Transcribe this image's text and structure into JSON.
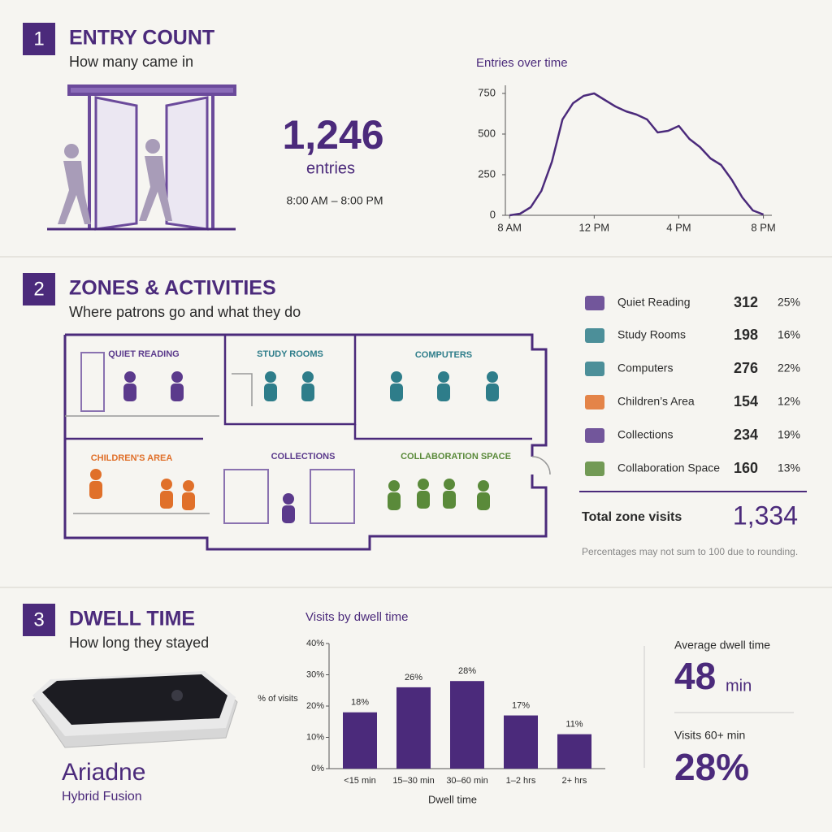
{
  "sections": [
    {
      "number": "1",
      "title": "ENTRY COUNT",
      "subtitle": "How many came in"
    },
    {
      "number": "2",
      "title": "ZONES & ACTIVITIES",
      "subtitle": "Where patrons go and what they do"
    },
    {
      "number": "3",
      "title": "DWELL TIME",
      "subtitle": "How long they stayed"
    }
  ],
  "entry_count": {
    "value": "1,246",
    "unit": "entries",
    "range": "8:00 AM – 8:00 PM"
  },
  "zones": {
    "labels": [
      "QUIET READING",
      "STUDY ROOMS",
      "COMPUTERS",
      "CHILDREN'S AREA",
      "COLLECTIONS",
      "COLLABORATION SPACE"
    ],
    "rows": [
      {
        "name": "Quiet Reading",
        "count": 312,
        "percent": "25%"
      },
      {
        "name": "Study Rooms",
        "count": 198,
        "percent": "16%"
      },
      {
        "name": "Computers",
        "count": 276,
        "percent": "22%"
      },
      {
        "name": "Children’s Area",
        "count": 154,
        "percent": "12%"
      },
      {
        "name": "Collections",
        "count": 234,
        "percent": "19%"
      },
      {
        "name": "Collaboration Space",
        "count": 160,
        "percent": "13%"
      }
    ],
    "total_label": "Total zone visits",
    "total": "1,334",
    "note": "Percentages may not sum to 100 due to rounding."
  },
  "dwell": {
    "average_label": "Average dwell time",
    "average": "48",
    "average_unit": "min",
    "long_label": "Visits 60+ min",
    "long_value": "28%"
  },
  "device": {
    "name": "Ariadne",
    "subtitle": "Hybrid Fusion"
  },
  "chart_data": [
    {
      "type": "line",
      "title": "Entries over time",
      "color": "#4b2a7b",
      "x": [
        8,
        8.5,
        9,
        9.5,
        10,
        10.5,
        11,
        11.5,
        12,
        12.5,
        13,
        13.5,
        14,
        14.5,
        15,
        15.5,
        16,
        16.5,
        17,
        17.5,
        18,
        18.5,
        19,
        19.5,
        20
      ],
      "values": [
        0,
        10,
        50,
        150,
        330,
        590,
        690,
        735,
        750,
        710,
        670,
        640,
        620,
        590,
        510,
        520,
        550,
        470,
        420,
        350,
        310,
        220,
        110,
        30,
        5
      ],
      "xlim": [
        7.8,
        20.4
      ],
      "ylim": [
        0,
        800
      ],
      "xticks": [
        {
          "value": 8,
          "label": "8 AM"
        },
        {
          "value": 12,
          "label": "12 PM"
        },
        {
          "value": 16,
          "label": "4 PM"
        },
        {
          "value": 20,
          "label": "8 PM"
        }
      ],
      "yticks": [
        0,
        250,
        500,
        750
      ]
    },
    {
      "type": "bar",
      "title": "Visits by dwell time",
      "color": "#4b2a7b",
      "y_label": "% of visits",
      "x_label": "Dwell time",
      "categories": [
        "<15 min",
        "15–30 min",
        "30–60 min",
        "1–2 hrs",
        "2+ hrs"
      ],
      "values": [
        18,
        26,
        28,
        17,
        11
      ],
      "value_labels": [
        "18%",
        "26%",
        "28%",
        "17%",
        "11%"
      ],
      "ylim": [
        0,
        40
      ],
      "yticks": [
        {
          "value": 0,
          "label": "0%"
        },
        {
          "value": 10,
          "label": "10%"
        },
        {
          "value": 20,
          "label": "20%"
        },
        {
          "value": 30,
          "label": "30%"
        },
        {
          "value": 40,
          "label": "40%"
        }
      ]
    }
  ]
}
